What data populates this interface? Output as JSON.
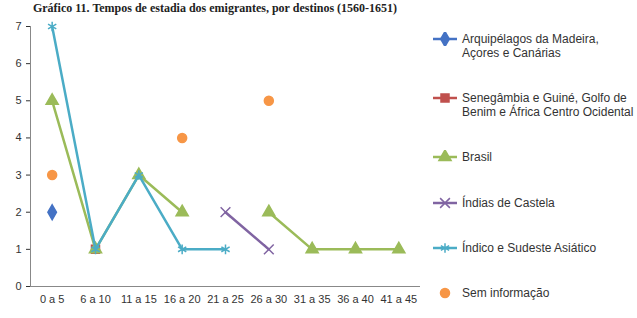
{
  "chart_data": {
    "type": "line",
    "title": "Gráfico 11. Tempos de estadia dos emigrantes, por destinos (1560-1651)",
    "categories": [
      "0 a 5",
      "6 a 10",
      "11 a 15",
      "16 a 20",
      "21 a 25",
      "26 a 30",
      "31 a 35",
      "36 a 40",
      "41 a 45"
    ],
    "series": [
      {
        "name": "Arquipélagos da Madeira, Açores e Canárias",
        "color": "#4472c4",
        "marker": "diamond",
        "line_style": "solid",
        "values": [
          2,
          null,
          null,
          null,
          null,
          null,
          null,
          null,
          null
        ]
      },
      {
        "name": "Senegâmbia e Guiné, Golfo de Benim e África Centro Ocidental",
        "color": "#c0504d",
        "marker": "square",
        "line_style": "solid",
        "values": [
          null,
          1,
          null,
          null,
          null,
          null,
          null,
          null,
          null
        ]
      },
      {
        "name": "Brasil",
        "color": "#9bbb59",
        "marker": "triangle",
        "line_style": "solid",
        "values": [
          5,
          1,
          3,
          2,
          null,
          2,
          1,
          1,
          1
        ]
      },
      {
        "name": "Índias de Castela",
        "color": "#8064a2",
        "marker": "times",
        "line_style": "solid",
        "values": [
          null,
          null,
          null,
          null,
          2,
          1,
          null,
          null,
          null
        ]
      },
      {
        "name": "Índico e Sudeste Asiático",
        "color": "#4bacc6",
        "marker": "asterisk",
        "line_style": "solid",
        "values": [
          7,
          1,
          3,
          1,
          1,
          null,
          null,
          null,
          null
        ]
      },
      {
        "name": "Sem informação",
        "color": "#f79646",
        "marker": "circle",
        "line_style": "none",
        "values": [
          3,
          null,
          null,
          4,
          null,
          5,
          null,
          null,
          null
        ]
      }
    ],
    "ylim": [
      0,
      7
    ],
    "yticks": [
      0,
      1,
      2,
      3,
      4,
      5,
      6,
      7
    ],
    "grid": false,
    "legend": "right"
  }
}
